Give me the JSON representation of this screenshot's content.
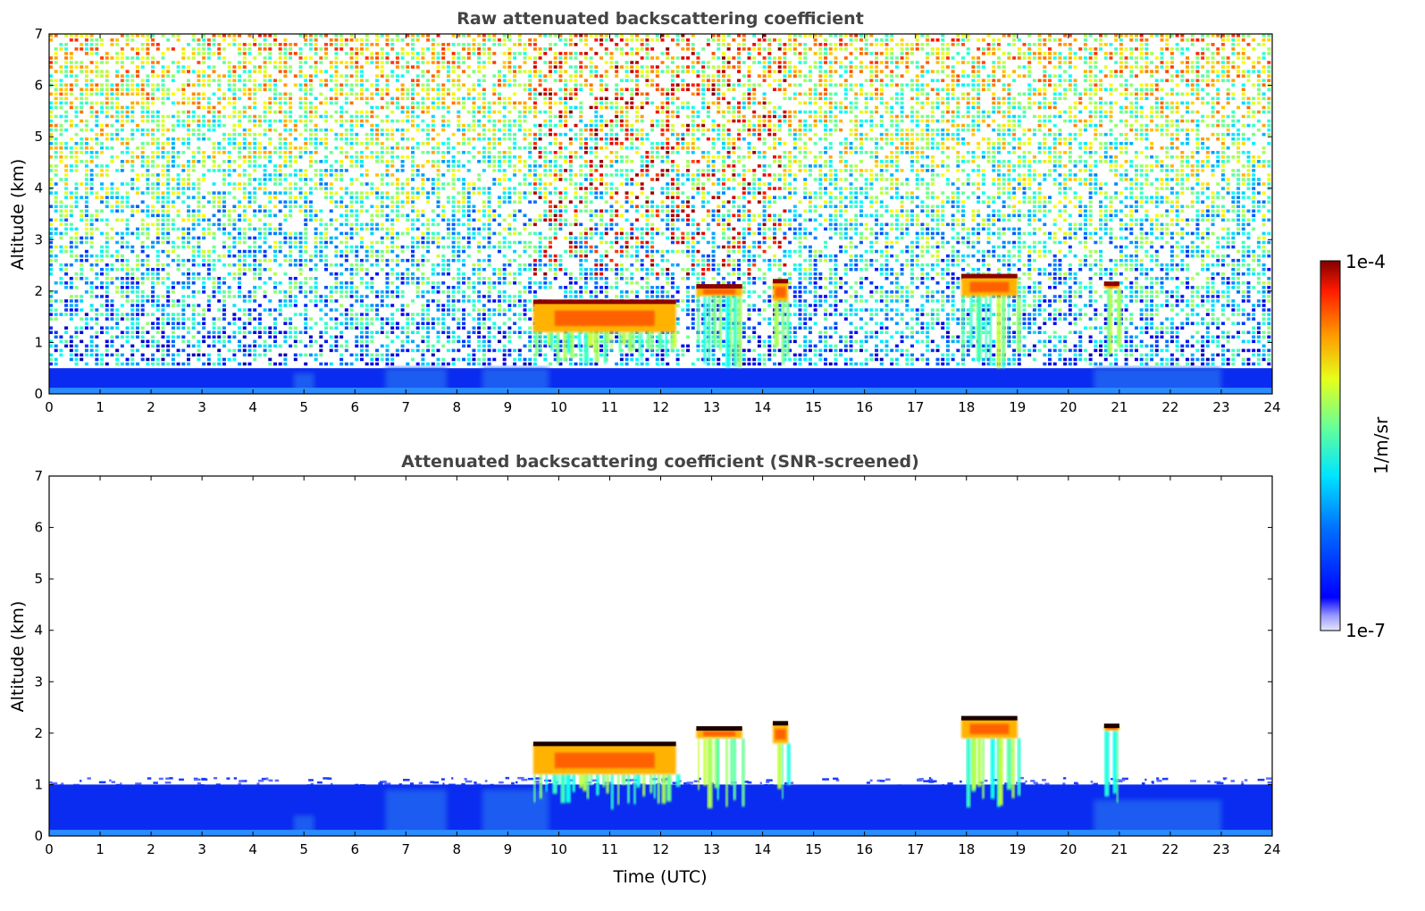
{
  "chart_data": [
    {
      "type": "heatmap",
      "title": "Raw attenuated backscattering coefficient",
      "xlabel": "",
      "ylabel": "Altitude (km)",
      "xlim": [
        0,
        24
      ],
      "ylim": [
        0,
        7
      ],
      "x_ticks": [
        "0",
        "1",
        "2",
        "3",
        "4",
        "5",
        "6",
        "7",
        "8",
        "9",
        "10",
        "11",
        "12",
        "13",
        "14",
        "15",
        "16",
        "17",
        "18",
        "19",
        "20",
        "21",
        "22",
        "23",
        "24"
      ],
      "y_ticks": [
        "0",
        "1",
        "2",
        "3",
        "4",
        "5",
        "6",
        "7"
      ],
      "colormap": "jet",
      "color_scale": "log",
      "features": {
        "boundary_layer_top_km": 0.5,
        "noise": "strong above 1 km across whole day, increasing with altitude",
        "cloud_layers": [
          {
            "t_start": 9.5,
            "t_end": 12.3,
            "base_km": 1.2,
            "top_km": 1.8
          },
          {
            "t_start": 12.7,
            "t_end": 13.6,
            "base_km": 1.9,
            "top_km": 2.1
          },
          {
            "t_start": 14.2,
            "t_end": 14.5,
            "base_km": 1.8,
            "top_km": 2.2
          },
          {
            "t_start": 17.9,
            "t_end": 19.0,
            "base_km": 1.9,
            "top_km": 2.3
          },
          {
            "t_start": 20.7,
            "t_end": 21.0,
            "base_km": 2.05,
            "top_km": 2.15
          }
        ]
      }
    },
    {
      "type": "heatmap",
      "title": "Attenuated backscattering coefficient (SNR-screened)",
      "xlabel": "Time (UTC)",
      "ylabel": "Altitude (km)",
      "xlim": [
        0,
        24
      ],
      "ylim": [
        0,
        7
      ],
      "x_ticks": [
        "0",
        "1",
        "2",
        "3",
        "4",
        "5",
        "6",
        "7",
        "8",
        "9",
        "10",
        "11",
        "12",
        "13",
        "14",
        "15",
        "16",
        "17",
        "18",
        "19",
        "20",
        "21",
        "22",
        "23",
        "24"
      ],
      "y_ticks": [
        "0",
        "1",
        "2",
        "3",
        "4",
        "5",
        "6",
        "7"
      ],
      "colormap": "jet",
      "color_scale": "log",
      "features": {
        "boundary_layer_top_km": 1.0,
        "noise": "screened out (white)",
        "cloud_layers": [
          {
            "t_start": 9.5,
            "t_end": 12.3,
            "base_km": 1.2,
            "top_km": 1.8
          },
          {
            "t_start": 12.7,
            "t_end": 13.6,
            "base_km": 1.9,
            "top_km": 2.1
          },
          {
            "t_start": 14.2,
            "t_end": 14.5,
            "base_km": 1.8,
            "top_km": 2.2
          },
          {
            "t_start": 17.9,
            "t_end": 19.0,
            "base_km": 1.9,
            "top_km": 2.3
          },
          {
            "t_start": 20.7,
            "t_end": 21.0,
            "base_km": 2.05,
            "top_km": 2.15
          }
        ]
      }
    }
  ],
  "colorbar": {
    "max_label": "1e-4",
    "min_label": "1e-7",
    "unit_label": "1/m/sr",
    "colors": [
      "#7f0000",
      "#ff0000",
      "#ff7f00",
      "#ffff00",
      "#7fff7f",
      "#00ffff",
      "#007fff",
      "#0000ff",
      "#00007f"
    ]
  }
}
